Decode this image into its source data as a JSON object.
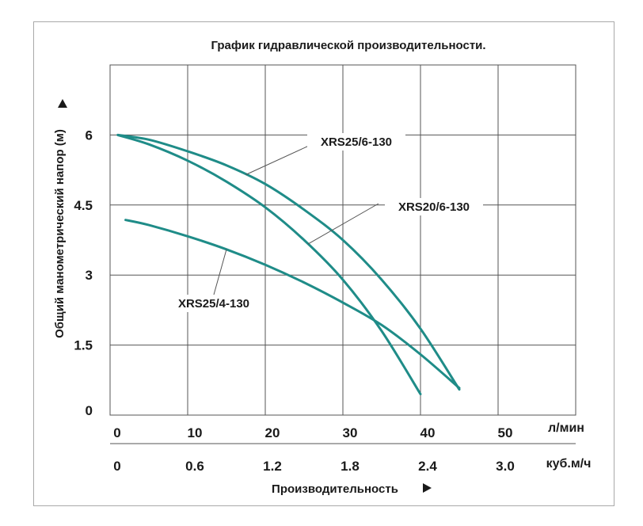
{
  "chart_data": {
    "type": "line",
    "title": "График гидравлической производительности.",
    "ylabel": "Общий манометрический напор (м)",
    "xlabel": "Производительность",
    "x_unit": "л/мин",
    "x2_unit": "куб.м/ч",
    "xlim": [
      0,
      60
    ],
    "ylim": [
      0,
      7.5
    ],
    "grid": true,
    "y_ticks": [
      0,
      1.5,
      3,
      4.5,
      6
    ],
    "y_tick_labels": [
      "0",
      "1.5",
      "3",
      "4.5",
      "6"
    ],
    "x_ticks": [
      0,
      10,
      20,
      30,
      40,
      50
    ],
    "x_tick_labels": [
      "0",
      "10",
      "20",
      "30",
      "40",
      "50"
    ],
    "x2_ticks": [
      0,
      10,
      20,
      30,
      40,
      50
    ],
    "x2_tick_labels": [
      "0",
      "0.6",
      "1.2",
      "1.8",
      "2.4",
      "3.0"
    ],
    "series": [
      {
        "name": "XRS25/6-130",
        "color": "#1f8c88",
        "x": [
          1,
          5,
          10,
          15,
          20,
          25,
          30,
          35,
          40,
          45
        ],
        "y": [
          6.0,
          5.9,
          5.65,
          5.35,
          4.95,
          4.4,
          3.75,
          2.9,
          1.85,
          0.55
        ]
      },
      {
        "name": "XRS20/6-130",
        "color": "#1f8c88",
        "x": [
          1,
          5,
          10,
          15,
          20,
          25,
          30,
          35,
          40
        ],
        "y": [
          6.0,
          5.8,
          5.45,
          5.0,
          4.45,
          3.75,
          2.9,
          1.8,
          0.45
        ]
      },
      {
        "name": "XRS25/4-130",
        "color": "#1f8c88",
        "x": [
          2,
          5,
          10,
          15,
          20,
          25,
          30,
          35,
          40,
          45
        ],
        "y": [
          4.18,
          4.07,
          3.83,
          3.55,
          3.22,
          2.84,
          2.41,
          1.93,
          1.3,
          0.58
        ]
      }
    ]
  }
}
